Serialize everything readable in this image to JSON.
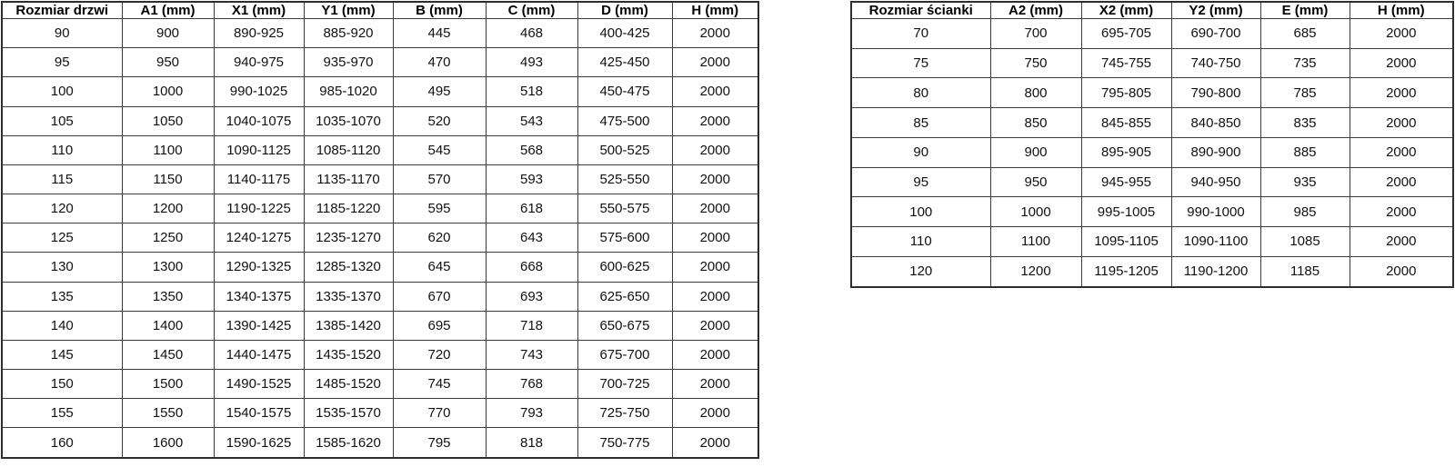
{
  "tables": [
    {
      "name": "door-sizes",
      "headers": [
        "Rozmiar drzwi",
        "A1 (mm)",
        "X1 (mm)",
        "Y1 (mm)",
        "B (mm)",
        "C (mm)",
        "D (mm)",
        "H (mm)"
      ],
      "rows": [
        [
          "90",
          "900",
          "890-925",
          "885-920",
          "445",
          "468",
          "400-425",
          "2000"
        ],
        [
          "95",
          "950",
          "940-975",
          "935-970",
          "470",
          "493",
          "425-450",
          "2000"
        ],
        [
          "100",
          "1000",
          "990-1025",
          "985-1020",
          "495",
          "518",
          "450-475",
          "2000"
        ],
        [
          "105",
          "1050",
          "1040-1075",
          "1035-1070",
          "520",
          "543",
          "475-500",
          "2000"
        ],
        [
          "110",
          "1100",
          "1090-1125",
          "1085-1120",
          "545",
          "568",
          "500-525",
          "2000"
        ],
        [
          "115",
          "1150",
          "1140-1175",
          "1135-1170",
          "570",
          "593",
          "525-550",
          "2000"
        ],
        [
          "120",
          "1200",
          "1190-1225",
          "1185-1220",
          "595",
          "618",
          "550-575",
          "2000"
        ],
        [
          "125",
          "1250",
          "1240-1275",
          "1235-1270",
          "620",
          "643",
          "575-600",
          "2000"
        ],
        [
          "130",
          "1300",
          "1290-1325",
          "1285-1320",
          "645",
          "668",
          "600-625",
          "2000"
        ],
        [
          "135",
          "1350",
          "1340-1375",
          "1335-1370",
          "670",
          "693",
          "625-650",
          "2000"
        ],
        [
          "140",
          "1400",
          "1390-1425",
          "1385-1420",
          "695",
          "718",
          "650-675",
          "2000"
        ],
        [
          "145",
          "1450",
          "1440-1475",
          "1435-1520",
          "720",
          "743",
          "675-700",
          "2000"
        ],
        [
          "150",
          "1500",
          "1490-1525",
          "1485-1520",
          "745",
          "768",
          "700-725",
          "2000"
        ],
        [
          "155",
          "1550",
          "1540-1575",
          "1535-1570",
          "770",
          "793",
          "725-750",
          "2000"
        ],
        [
          "160",
          "1600",
          "1590-1625",
          "1585-1620",
          "795",
          "818",
          "750-775",
          "2000"
        ]
      ]
    },
    {
      "name": "wall-sizes",
      "headers": [
        "Rozmiar ścianki",
        "A2 (mm)",
        "X2 (mm)",
        "Y2 (mm)",
        "E (mm)",
        "H (mm)"
      ],
      "rows": [
        [
          "70",
          "700",
          "695-705",
          "690-700",
          "685",
          "2000"
        ],
        [
          "75",
          "750",
          "745-755",
          "740-750",
          "735",
          "2000"
        ],
        [
          "80",
          "800",
          "795-805",
          "790-800",
          "785",
          "2000"
        ],
        [
          "85",
          "850",
          "845-855",
          "840-850",
          "835",
          "2000"
        ],
        [
          "90",
          "900",
          "895-905",
          "890-900",
          "885",
          "2000"
        ],
        [
          "95",
          "950",
          "945-955",
          "940-950",
          "935",
          "2000"
        ],
        [
          "100",
          "1000",
          "995-1005",
          "990-1000",
          "985",
          "2000"
        ],
        [
          "110",
          "1100",
          "1095-1105",
          "1090-1100",
          "1085",
          "2000"
        ],
        [
          "120",
          "1200",
          "1195-1205",
          "1190-1200",
          "1185",
          "2000"
        ]
      ]
    }
  ]
}
